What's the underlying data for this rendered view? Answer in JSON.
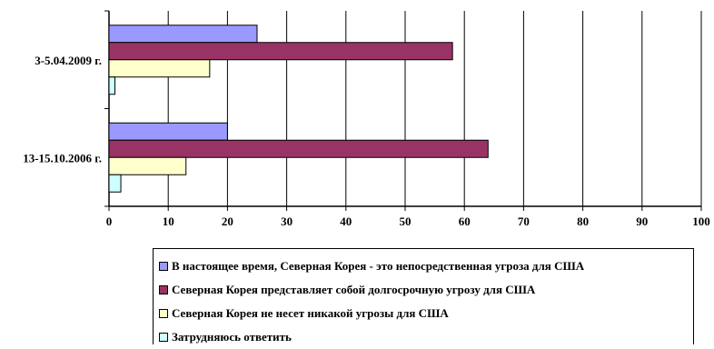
{
  "chart_data": {
    "type": "bar",
    "orientation": "horizontal",
    "categories": [
      "3-5.04.2009 г.",
      "13-15.10.2006 г."
    ],
    "series": [
      {
        "name": "В настоящее время, Северная Корея - это непосредственная угроза для США",
        "color": "#9999ff",
        "values": [
          25,
          20
        ]
      },
      {
        "name": "Северная Корея представляет собой долгосрочную угрозу для США",
        "color": "#993366",
        "values": [
          58,
          64
        ]
      },
      {
        "name": "Северная Корея не несет никакой угрозы для США",
        "color": "#ffffcc",
        "values": [
          17,
          13
        ]
      },
      {
        "name": "Затрудняюсь ответить",
        "color": "#ccffff",
        "values": [
          1,
          2
        ]
      }
    ],
    "xlim": [
      0,
      100
    ],
    "xticks": [
      "0",
      "10",
      "20",
      "30",
      "40",
      "50",
      "60",
      "70",
      "80",
      "90",
      "100"
    ],
    "grid": true,
    "legend_position": "bottom"
  }
}
